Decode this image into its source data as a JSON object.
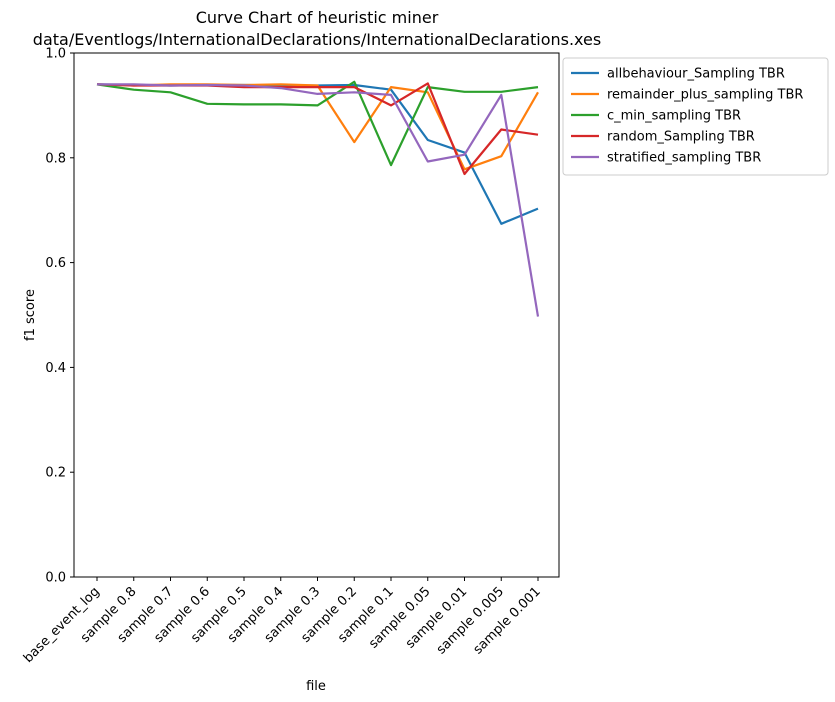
{
  "chart_data": {
    "type": "line",
    "title": "Curve Chart of heuristic miner",
    "subtitle": "data/Eventlogs/InternationalDeclarations/InternationalDeclarations.xes",
    "xlabel": "file",
    "ylabel": "f1 score",
    "ylim": [
      0,
      1.0
    ],
    "yticks": [
      "0.0",
      "0.2",
      "0.4",
      "0.6",
      "0.8",
      "1.0"
    ],
    "grid": false,
    "legend_position": "outside-top-right",
    "categories": [
      "base_event_log",
      "sample 0.8",
      "sample 0.7",
      "sample 0.6",
      "sample 0.5",
      "sample 0.4",
      "sample 0.3",
      "sample 0.2",
      "sample 0.1",
      "sample 0.05",
      "sample 0.01",
      "sample 0.005",
      "sample 0.001"
    ],
    "series": [
      {
        "name": "allbehaviour_Sampling TBR",
        "color": "#1f77b4",
        "values": [
          0.94,
          0.939,
          0.938,
          0.939,
          0.939,
          0.938,
          0.938,
          0.939,
          0.93,
          0.834,
          0.81,
          0.674,
          0.703
        ]
      },
      {
        "name": "remainder_plus_sampling TBR",
        "color": "#ff7f0e",
        "values": [
          0.94,
          0.938,
          0.94,
          0.94,
          0.939,
          0.94,
          0.938,
          0.83,
          0.935,
          0.925,
          0.778,
          0.803,
          0.925
        ]
      },
      {
        "name": "c_min_sampling TBR",
        "color": "#2ca02c",
        "values": [
          0.94,
          0.93,
          0.925,
          0.903,
          0.902,
          0.902,
          0.9,
          0.945,
          0.786,
          0.935,
          0.926,
          0.926,
          0.935
        ]
      },
      {
        "name": "random_Sampling TBR",
        "color": "#d62728",
        "values": [
          0.94,
          0.938,
          0.938,
          0.938,
          0.935,
          0.935,
          0.935,
          0.935,
          0.9,
          0.942,
          0.769,
          0.854,
          0.844
        ]
      },
      {
        "name": "stratified_sampling TBR",
        "color": "#9467bd",
        "values": [
          0.94,
          0.94,
          0.938,
          0.939,
          0.938,
          0.933,
          0.922,
          0.925,
          0.92,
          0.793,
          0.806,
          0.92,
          0.497
        ]
      }
    ]
  }
}
